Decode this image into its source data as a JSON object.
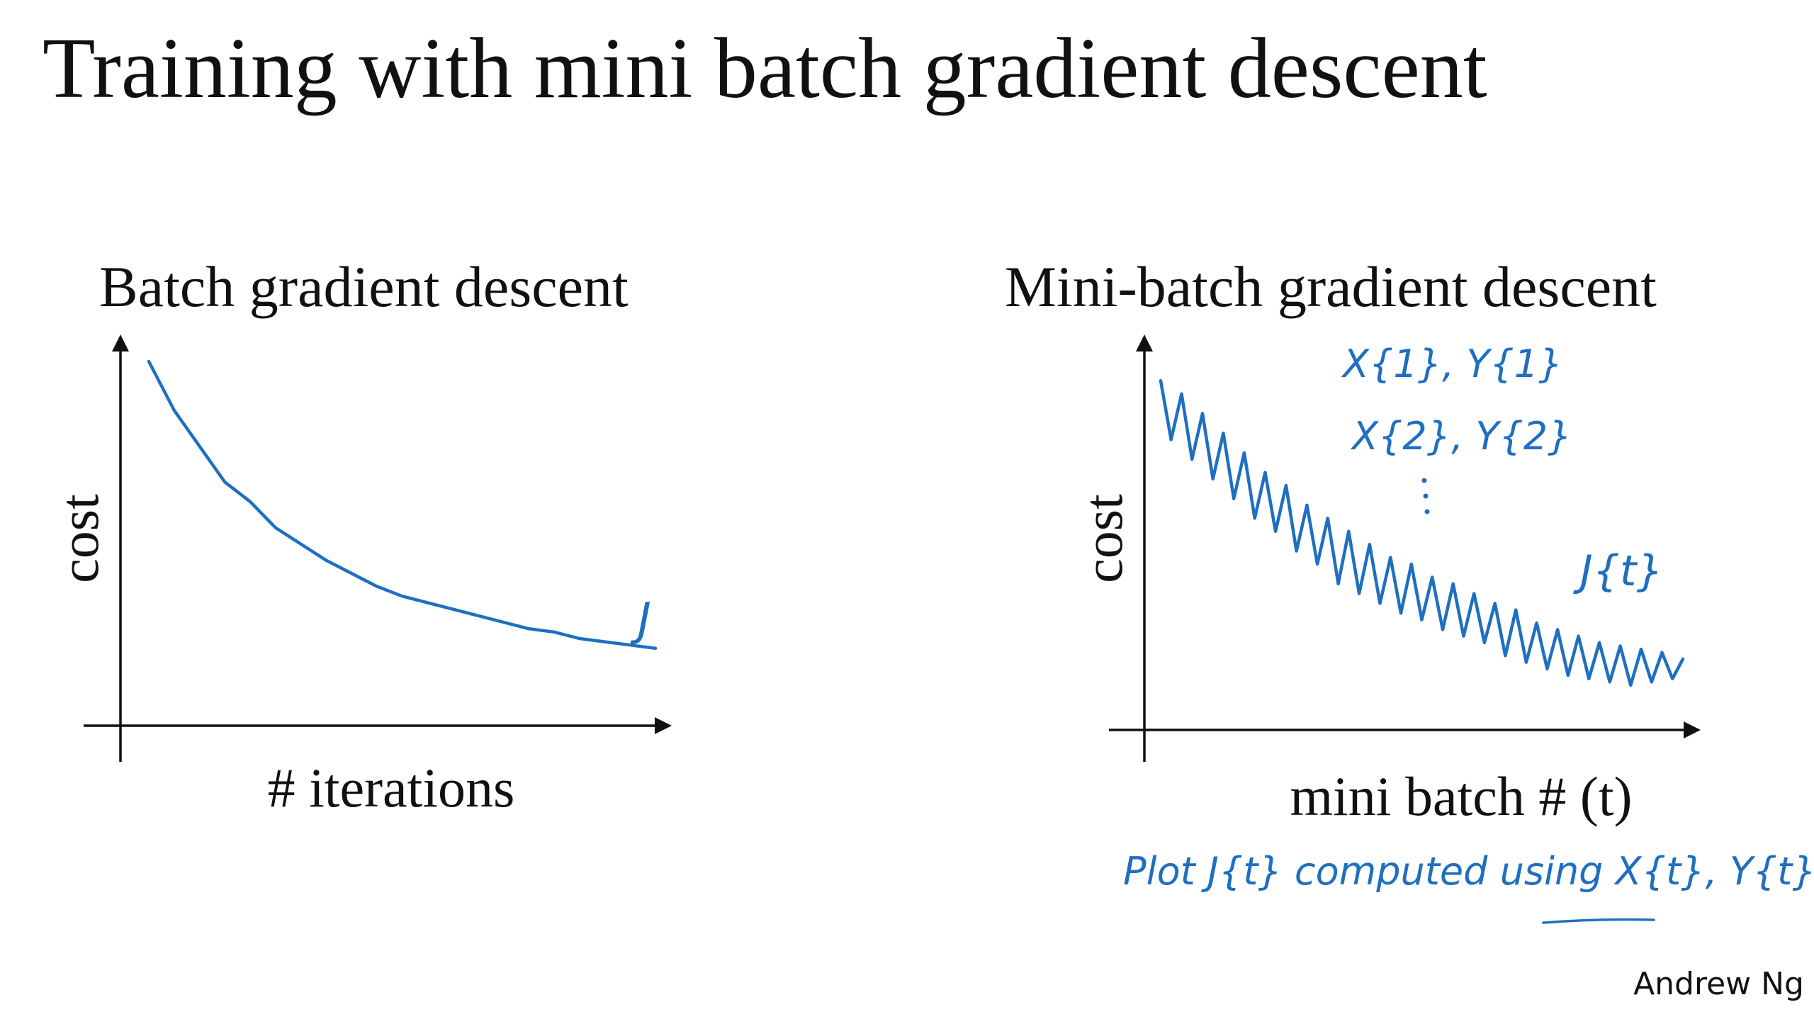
{
  "slide": {
    "title": "Training with mini batch gradient descent",
    "author": "Andrew Ng"
  },
  "colors": {
    "ink": "#1F6FC1",
    "text": "#111111"
  },
  "chart_data": [
    {
      "type": "line",
      "title": "Batch gradient descent",
      "xlabel": "# iterations",
      "ylabel": "cost",
      "grid": false,
      "x": [
        0,
        0.05,
        0.1,
        0.15,
        0.2,
        0.25,
        0.3,
        0.35,
        0.4,
        0.45,
        0.5,
        0.55,
        0.6,
        0.65,
        0.7,
        0.75,
        0.8,
        0.85,
        0.9,
        0.95,
        1.0
      ],
      "series": [
        {
          "values": [
            1.0,
            0.85,
            0.74,
            0.63,
            0.57,
            0.49,
            0.44,
            0.39,
            0.35,
            0.31,
            0.28,
            0.26,
            0.24,
            0.22,
            0.2,
            0.18,
            0.17,
            0.15,
            0.14,
            0.13,
            0.12
          ]
        }
      ],
      "annotations": [
        {
          "text": "J"
        }
      ]
    },
    {
      "type": "line",
      "title": "Mini-batch gradient descent",
      "xlabel": "mini batch # (t)",
      "ylabel": "cost",
      "grid": false,
      "x": [
        0,
        0.02,
        0.04,
        0.06,
        0.08,
        0.1,
        0.12,
        0.14,
        0.16,
        0.18,
        0.2,
        0.22,
        0.24,
        0.26,
        0.28,
        0.3,
        0.32,
        0.34,
        0.36,
        0.38,
        0.4,
        0.42,
        0.44,
        0.46,
        0.48,
        0.5,
        0.52,
        0.54,
        0.56,
        0.58,
        0.6,
        0.62,
        0.64,
        0.66,
        0.68,
        0.7,
        0.72,
        0.74,
        0.76,
        0.78,
        0.8,
        0.82,
        0.84,
        0.86,
        0.88,
        0.9,
        0.92,
        0.94,
        0.96,
        0.98,
        1.0
      ],
      "series": [
        {
          "values": [
            0.98,
            0.8,
            0.94,
            0.74,
            0.88,
            0.68,
            0.82,
            0.62,
            0.76,
            0.56,
            0.7,
            0.52,
            0.66,
            0.46,
            0.6,
            0.42,
            0.56,
            0.36,
            0.52,
            0.33,
            0.48,
            0.3,
            0.44,
            0.27,
            0.42,
            0.25,
            0.38,
            0.22,
            0.36,
            0.2,
            0.33,
            0.18,
            0.3,
            0.14,
            0.28,
            0.12,
            0.24,
            0.1,
            0.22,
            0.08,
            0.2,
            0.07,
            0.18,
            0.06,
            0.17,
            0.05,
            0.16,
            0.06,
            0.15,
            0.07,
            0.13
          ]
        }
      ],
      "annotations": [
        {
          "text": "X{1}, Y{1}"
        },
        {
          "text": "X{2}, Y{2}"
        },
        {
          "text": "J{t}"
        },
        {
          "text": "Plot J{t} computed using X{t}, Y{t}"
        }
      ]
    }
  ]
}
